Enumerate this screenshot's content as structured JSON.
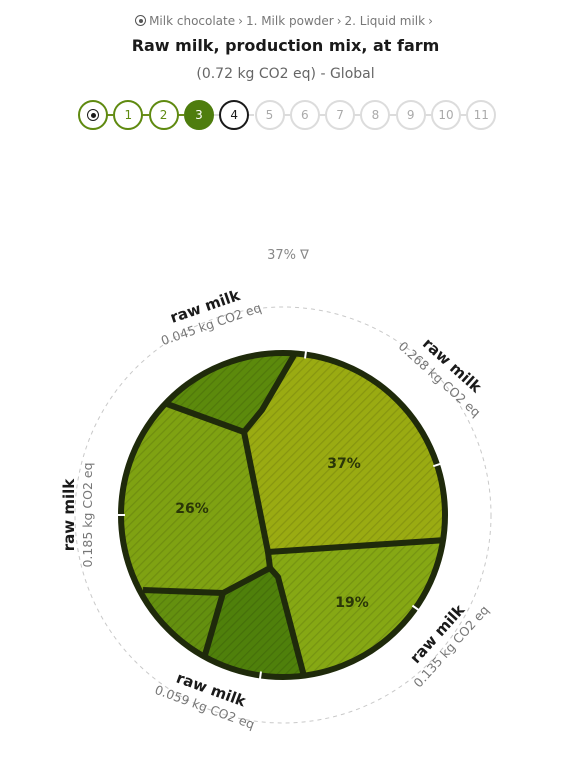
{
  "breadcrumb": {
    "items": [
      "Milk chocolate",
      "1. Milk powder",
      "2. Liquid milk"
    ],
    "separator": "›"
  },
  "header": {
    "title": "Raw milk, production mix, at farm",
    "subtitle": "(0.72 kg CO2 eq) - Global"
  },
  "stepper": {
    "steps": [
      "1",
      "2",
      "3",
      "4",
      "5",
      "6",
      "7",
      "8",
      "9",
      "10",
      "11"
    ],
    "completed": [
      1,
      2
    ],
    "active": 3,
    "current": 4
  },
  "chart_data": {
    "type": "voronoi-treemap",
    "top_label": "37% ∇",
    "cells": [
      {
        "label": "37%",
        "value": 0.268,
        "color": "#9aab12"
      },
      {
        "label": "26%",
        "value": 0.185,
        "color": "#7fa212"
      },
      {
        "label": "19%",
        "value": 0.135,
        "color": "#86a814"
      },
      {
        "label": "",
        "value": 0.045,
        "color": "#5c8a0c"
      },
      {
        "label": "",
        "value": 0.059,
        "color": "#4f800b"
      },
      {
        "label": "",
        "value": 0,
        "color": "#64900f"
      }
    ],
    "arc_labels": [
      {
        "name": "raw milk",
        "value": "0.045 kg CO2 eq"
      },
      {
        "name": "raw milk",
        "value": "0.268 kg CO2 eq"
      },
      {
        "name": "raw milk",
        "value": "0.185 kg CO2 eq"
      },
      {
        "name": "raw milk",
        "value": "0.135 kg CO2 eq"
      },
      {
        "name": "raw milk",
        "value": "0.059 kg CO2 eq"
      }
    ]
  }
}
